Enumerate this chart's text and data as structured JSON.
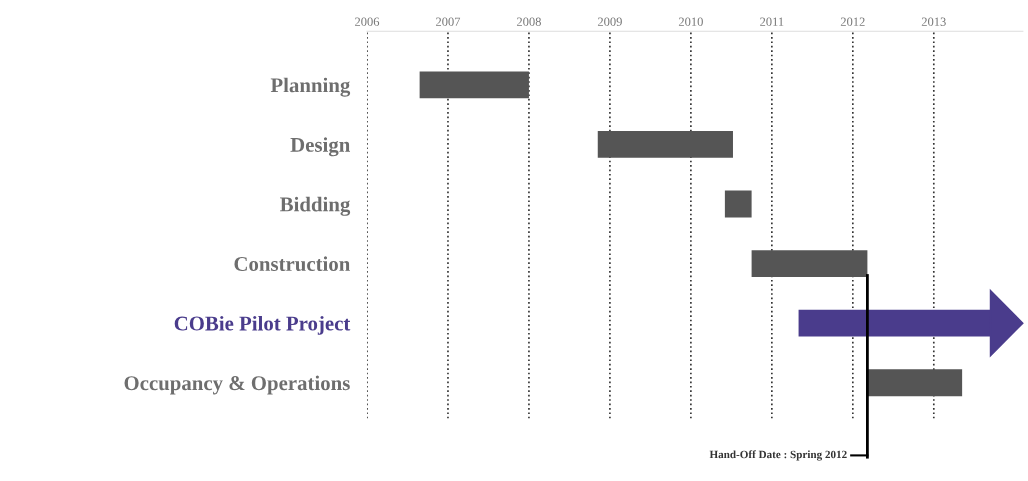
{
  "chart_data": {
    "type": "bar",
    "orientation": "horizontal",
    "categories": [
      "Planning",
      "Design",
      "Bidding",
      "Construction",
      "COBie Pilot Project",
      "Occupancy & Operations"
    ],
    "base": [
      2006.65,
      2008.85,
      2010.42,
      2010.75,
      2011.33,
      2012.18
    ],
    "values": [
      1.35,
      1.67,
      0.33,
      1.43,
      2.37,
      1.17
    ],
    "colors": [
      "#555555",
      "#555555",
      "#555555",
      "#555555",
      "#4a3c8c",
      "#555555"
    ],
    "xlim": [
      2006,
      2014.1
    ],
    "xticks": [
      2006,
      2007,
      2008,
      2009,
      2010,
      2011,
      2012,
      2013
    ],
    "grid": "x",
    "ref_lines": [
      {
        "axis": "x",
        "value": 2012.18,
        "label": "Hand-Off Date : Spring 2012",
        "color": "#000000"
      }
    ]
  }
}
